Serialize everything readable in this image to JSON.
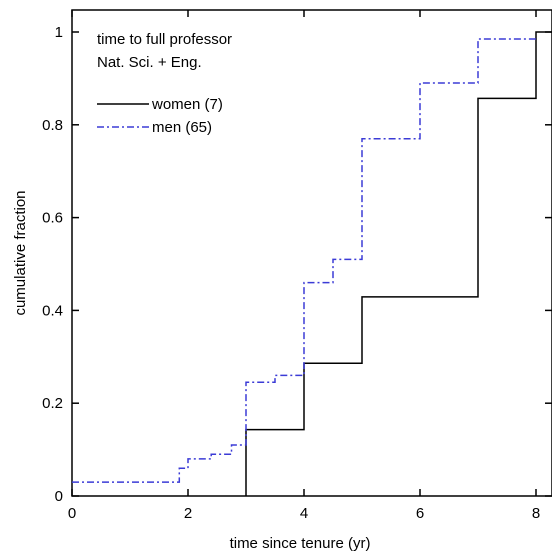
{
  "chart_data": {
    "type": "line",
    "step": true,
    "title": "",
    "annotation_lines": [
      "time to full professor",
      "Nat. Sci. + Eng."
    ],
    "xlabel": "time since tenure (yr)",
    "ylabel": "cumulative fraction",
    "xlim": [
      0,
      8.3
    ],
    "ylim": [
      0,
      1.05
    ],
    "xticks": [
      0,
      2,
      4,
      6,
      8
    ],
    "yticks": [
      0,
      0.2,
      0.4,
      0.6,
      0.8,
      1
    ],
    "xtick_labels": [
      "0",
      "2",
      "4",
      "6",
      "8"
    ],
    "ytick_labels": [
      "0",
      "0.2",
      "0.4",
      "0.6",
      "0.8",
      "1"
    ],
    "grid": false,
    "legend_position": "top-left",
    "series": [
      {
        "name": "women (7)",
        "color": "#000000",
        "style": "solid",
        "x": [
          3,
          3,
          4,
          4,
          5,
          5,
          7,
          7,
          8,
          8,
          8.3
        ],
        "y": [
          0,
          0.143,
          0.143,
          0.286,
          0.286,
          0.429,
          0.429,
          0.857,
          0.857,
          1,
          1
        ]
      },
      {
        "name": "men (65)",
        "color": "#3b3bd6",
        "style": "dashdot",
        "x": [
          0,
          1.85,
          1.85,
          2.0,
          2.0,
          2.4,
          2.4,
          2.75,
          2.75,
          3.0,
          3.0,
          3.5,
          3.5,
          4.0,
          4.0,
          4.5,
          4.5,
          5.0,
          5.0,
          6.0,
          6.0,
          7.0,
          7.0,
          8.0
        ],
        "y": [
          0.03,
          0.03,
          0.06,
          0.06,
          0.08,
          0.08,
          0.09,
          0.09,
          0.11,
          0.11,
          0.245,
          0.245,
          0.26,
          0.26,
          0.46,
          0.46,
          0.51,
          0.51,
          0.77,
          0.77,
          0.89,
          0.89,
          0.985,
          0.985
        ]
      }
    ]
  }
}
